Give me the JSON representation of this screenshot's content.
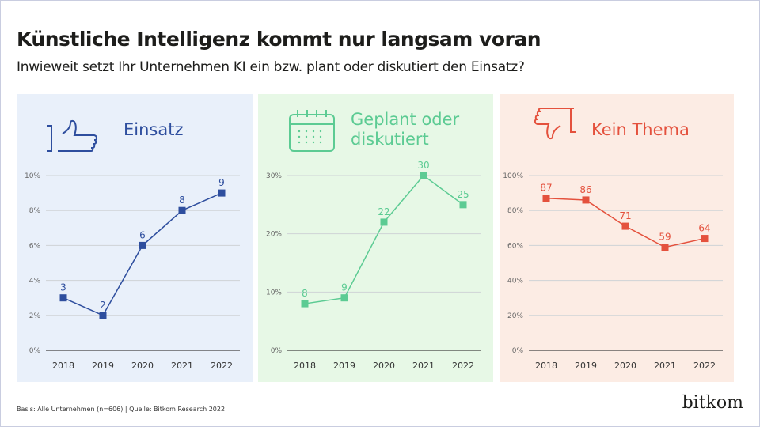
{
  "title": "Künstliche Intelligenz kommt nur langsam voran",
  "subtitle": "Inwieweit setzt Ihr Unternehmen KI ein bzw. plant oder diskutiert den Einsatz?",
  "footer": "Basis: Alle Unternehmen (n=606) | Quelle: Bitkom Research 2022",
  "logo": "bitkom",
  "chart_data": [
    {
      "type": "line",
      "title": "Einsatz",
      "icon": "thumbs-up-icon",
      "color": "#2e4e9e",
      "background": "#e9f0fa",
      "categories": [
        "2018",
        "2019",
        "2020",
        "2021",
        "2022"
      ],
      "values": [
        3,
        2,
        6,
        8,
        9
      ],
      "data_labels": [
        "3",
        "2",
        "6",
        "8",
        "9"
      ],
      "ylim": [
        0,
        10
      ],
      "yticks": [
        "0%",
        "2%",
        "4%",
        "6%",
        "8%",
        "10%"
      ],
      "grid": true
    },
    {
      "type": "line",
      "title": "Geplant oder diskutiert",
      "icon": "calendar-icon",
      "color": "#5ccb93",
      "background": "#e7f8e6",
      "categories": [
        "2018",
        "2019",
        "2020",
        "2021",
        "2022"
      ],
      "values": [
        8,
        9,
        22,
        30,
        25
      ],
      "data_labels": [
        "8",
        "9",
        "22",
        "30",
        "25"
      ],
      "ylim": [
        0,
        30
      ],
      "yticks": [
        "0%",
        "10%",
        "20%",
        "30%"
      ],
      "grid": true
    },
    {
      "type": "line",
      "title": "Kein Thema",
      "icon": "thumbs-down-icon",
      "color": "#e4513d",
      "background": "#fcece4",
      "categories": [
        "2018",
        "2019",
        "2020",
        "2021",
        "2022"
      ],
      "values": [
        87,
        86,
        71,
        59,
        64
      ],
      "data_labels": [
        "87",
        "86",
        "71",
        "59",
        "64"
      ],
      "ylim": [
        0,
        100
      ],
      "yticks": [
        "0%",
        "20%",
        "40%",
        "60%",
        "80%",
        "100%"
      ],
      "grid": true
    }
  ]
}
